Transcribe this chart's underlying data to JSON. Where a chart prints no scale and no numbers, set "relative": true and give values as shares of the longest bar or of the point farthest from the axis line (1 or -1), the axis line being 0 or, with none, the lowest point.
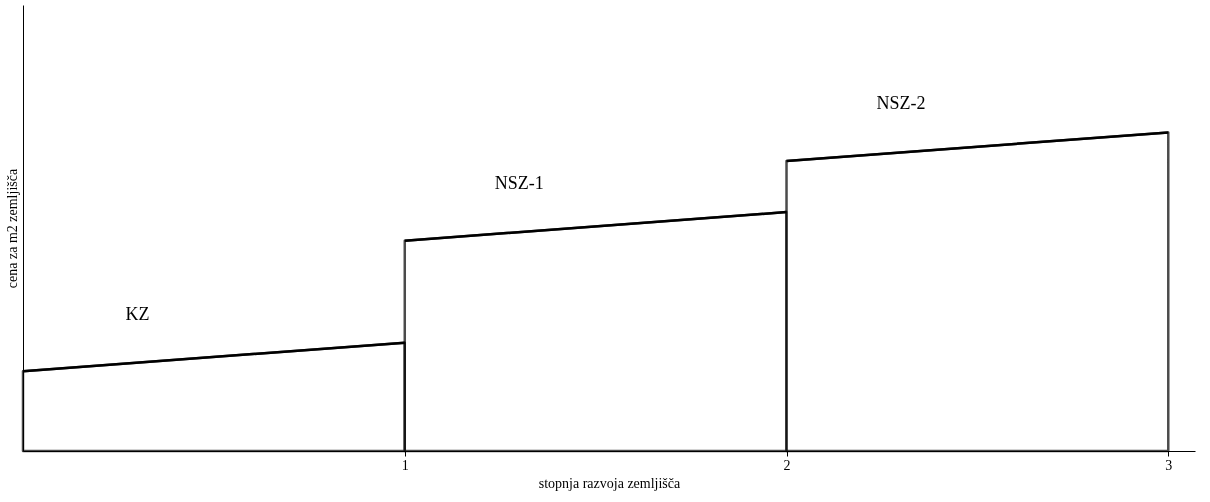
{
  "chart_data": {
    "type": "area",
    "relative": true,
    "xlabel": "stopnja razvoja zemljišča",
    "ylabel": "cena za m2 zemljišča",
    "xlim": [
      0,
      3.07
    ],
    "xticks": [
      {
        "value": 1,
        "label": "1"
      },
      {
        "value": 2,
        "label": "2"
      },
      {
        "value": 3,
        "label": "3"
      }
    ],
    "grid": false,
    "series": [
      {
        "name": "KZ",
        "color": "#000000",
        "x": [
          0,
          1
        ],
        "values": [
          0.25,
          0.34
        ]
      },
      {
        "name": "NSZ-1",
        "color": "#000000",
        "x": [
          1,
          2
        ],
        "values": [
          0.66,
          0.75
        ]
      },
      {
        "name": "NSZ-2",
        "color": "#000000",
        "x": [
          2,
          3
        ],
        "values": [
          0.91,
          1
        ]
      }
    ]
  }
}
